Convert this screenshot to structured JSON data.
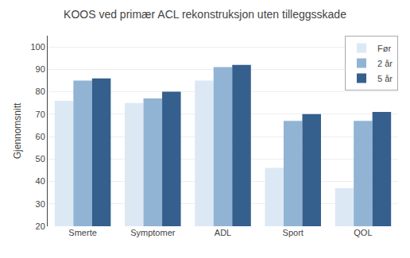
{
  "chart_data": {
    "type": "bar",
    "title": "KOOS ved primær ACL rekonstruksjon uten tilleggsskade",
    "ylabel": "Gjennomsnitt",
    "categories": [
      "Smerte",
      "Symptomer",
      "ADL",
      "Sport",
      "QOL"
    ],
    "series": [
      {
        "name": "Før",
        "color": "#dce9f5",
        "values": [
          76,
          75,
          85,
          46,
          37
        ]
      },
      {
        "name": "2 år",
        "color": "#92b4d4",
        "values": [
          85,
          77,
          91,
          67,
          67
        ]
      },
      {
        "name": "5 år",
        "color": "#355f8d",
        "values": [
          86,
          80,
          92,
          70,
          71
        ]
      }
    ],
    "ylim": [
      20,
      105
    ],
    "yticks": [
      20,
      30,
      40,
      50,
      60,
      70,
      80,
      90,
      100
    ],
    "grid": true,
    "legend": "upper right"
  }
}
